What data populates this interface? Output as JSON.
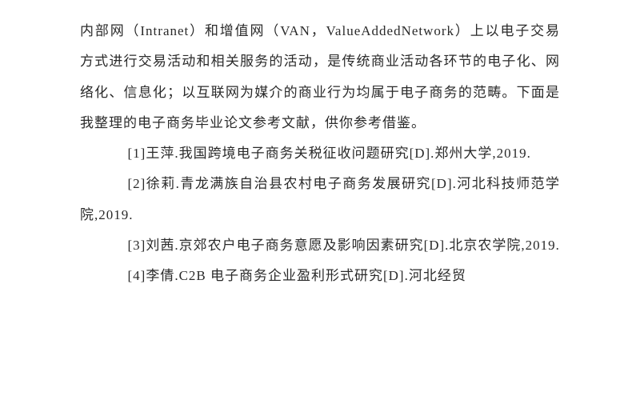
{
  "intro": {
    "text": "内部网（Intranet）和增值网（VAN，ValueAddedNetwork）上以电子交易方式进行交易活动和相关服务的活动，是传统商业活动各环节的电子化、网络化、信息化；以互联网为媒介的商业行为均属于电子商务的范畴。下面是我整理的电子商务毕业论文参考文献，供你参考借鉴。"
  },
  "refs": [
    {
      "text": "[1]王萍.我国跨境电子商务关税征收问题研究[D].郑州大学,2019."
    },
    {
      "text": "[2]徐莉.青龙满族自治县农村电子商务发展研究[D].河北科技师范学院,2019."
    },
    {
      "text": "[3]刘茜.京郊农户电子商务意愿及影响因素研究[D].北京农学院,2019."
    },
    {
      "text": "[4]李倩.C2B 电子商务企业盈利形式研究[D].河北经贸"
    }
  ],
  "style": {
    "font_size_pt": 13,
    "line_height": 2.25,
    "text_color": "#2a2a2a",
    "background": "#ffffff",
    "ref_indent_em": 3.5
  }
}
